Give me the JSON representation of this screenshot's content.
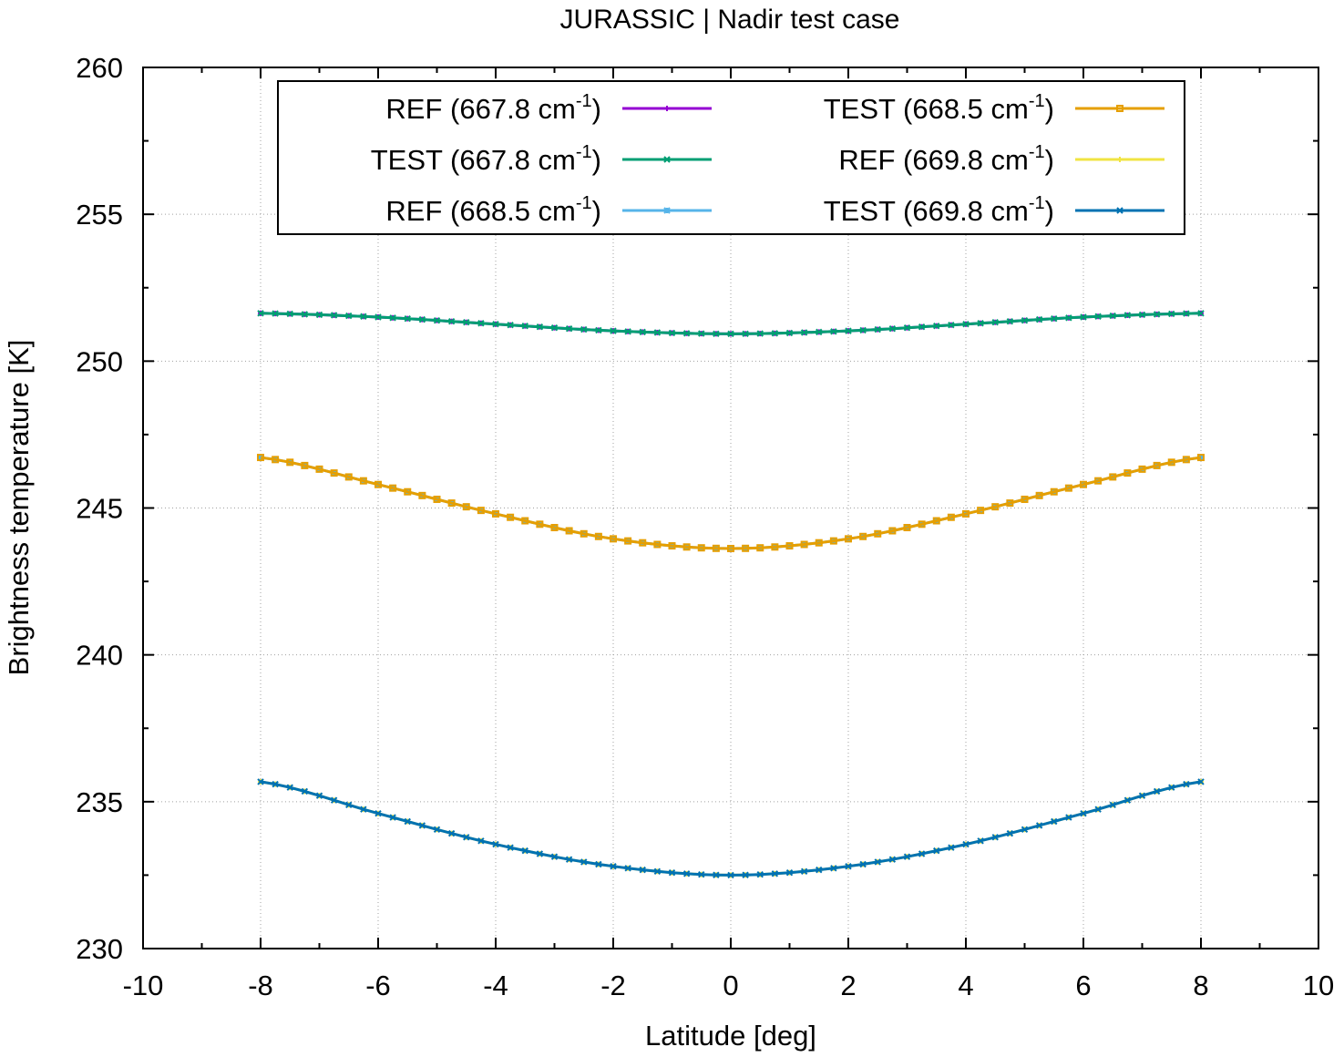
{
  "chart_data": {
    "type": "line",
    "title": "JURASSIC | Nadir test case",
    "xlabel": "Latitude [deg]",
    "ylabel": "Brightness temperature [K]",
    "xlim": [
      -10,
      10
    ],
    "ylim": [
      230,
      260
    ],
    "xticks": [
      -10,
      -8,
      -6,
      -4,
      -2,
      0,
      2,
      4,
      6,
      8,
      10
    ],
    "yticks": [
      230,
      235,
      240,
      245,
      250,
      255,
      260
    ],
    "grid": true,
    "legend_position": "top",
    "x_range": [
      -8,
      8
    ],
    "x_step": 0.25,
    "series": [
      {
        "name": "REF (667.8 cm-1)",
        "label_main": "REF (667.8 cm",
        "label_sup": "-1",
        "label_end": ")",
        "color": "#9400d3",
        "marker": "plus",
        "points": [
          [
            -8,
            251.63
          ],
          [
            -6,
            251.5
          ],
          [
            -4,
            251.26
          ],
          [
            -2,
            251.03
          ],
          [
            0,
            250.93
          ],
          [
            2,
            251.03
          ],
          [
            4,
            251.26
          ],
          [
            6,
            251.5
          ],
          [
            8,
            251.63
          ]
        ]
      },
      {
        "name": "TEST (667.8 cm-1)",
        "label_main": "TEST (667.8 cm",
        "label_sup": "-1",
        "label_end": ")",
        "color": "#009e73",
        "marker": "cross",
        "points": [
          [
            -8,
            251.63
          ],
          [
            -6,
            251.5
          ],
          [
            -4,
            251.26
          ],
          [
            -2,
            251.03
          ],
          [
            0,
            250.93
          ],
          [
            2,
            251.03
          ],
          [
            4,
            251.26
          ],
          [
            6,
            251.5
          ],
          [
            8,
            251.63
          ]
        ]
      },
      {
        "name": "REF (668.5 cm-1)",
        "label_main": "REF (668.5 cm",
        "label_sup": "-1",
        "label_end": ")",
        "color": "#56b4e9",
        "marker": "star",
        "points": [
          [
            -8,
            246.72
          ],
          [
            -6,
            245.8
          ],
          [
            -4,
            244.8
          ],
          [
            -2,
            243.95
          ],
          [
            0,
            243.62
          ],
          [
            2,
            243.95
          ],
          [
            4,
            244.8
          ],
          [
            6,
            245.8
          ],
          [
            8,
            246.72
          ]
        ]
      },
      {
        "name": "TEST (668.5 cm-1)",
        "label_main": "TEST (668.5 cm",
        "label_sup": "-1",
        "label_end": ")",
        "color": "#e69f00",
        "marker": "box",
        "points": [
          [
            -8,
            246.72
          ],
          [
            -6,
            245.8
          ],
          [
            -4,
            244.8
          ],
          [
            -2,
            243.95
          ],
          [
            0,
            243.62
          ],
          [
            2,
            243.95
          ],
          [
            4,
            244.8
          ],
          [
            6,
            245.8
          ],
          [
            8,
            246.72
          ]
        ]
      },
      {
        "name": "REF (669.8 cm-1)",
        "label_main": "REF (669.8 cm",
        "label_sup": "-1",
        "label_end": ")",
        "color": "#f0e442",
        "marker": "plus",
        "points": [
          [
            -8,
            235.68
          ],
          [
            -6,
            234.6
          ],
          [
            -4,
            233.55
          ],
          [
            -2,
            232.8
          ],
          [
            0,
            232.5
          ],
          [
            2,
            232.8
          ],
          [
            4,
            233.55
          ],
          [
            6,
            234.6
          ],
          [
            8,
            235.68
          ]
        ]
      },
      {
        "name": "TEST (669.8 cm-1)",
        "label_main": "TEST (669.8 cm",
        "label_sup": "-1",
        "label_end": ")",
        "color": "#0072b2",
        "marker": "cross",
        "points": [
          [
            -8,
            235.68
          ],
          [
            -6,
            234.6
          ],
          [
            -4,
            233.55
          ],
          [
            -2,
            232.8
          ],
          [
            0,
            232.5
          ],
          [
            2,
            232.8
          ],
          [
            4,
            233.55
          ],
          [
            6,
            234.6
          ],
          [
            8,
            235.68
          ]
        ]
      }
    ]
  }
}
